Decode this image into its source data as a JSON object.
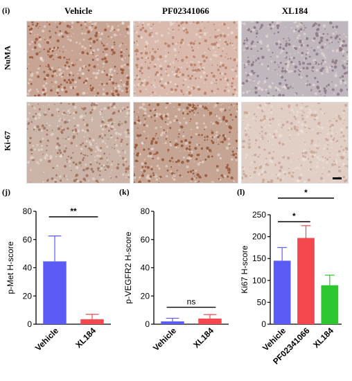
{
  "panel_labels": {
    "i": "(i)",
    "j": "(j)",
    "k": "(k)",
    "l": "(l)"
  },
  "micrographs": {
    "columns": [
      "Vehicle",
      "PF02341066",
      "XL184"
    ],
    "rows": [
      "NuMA",
      "Ki-67"
    ],
    "tile_colors": [
      [
        "#9a5a3c",
        "#b9826a",
        "#8d7a86"
      ],
      [
        "#a0745f",
        "#96593a",
        "#c9a797"
      ]
    ],
    "scale_bar_color": "#000000"
  },
  "chart_data": [
    {
      "type": "bar",
      "panel": "(j)",
      "categories": [
        "Vehicle",
        "XL184"
      ],
      "values": [
        44.5,
        3.5
      ],
      "errors": [
        18,
        3.5
      ],
      "colors": [
        "#5b5bf5",
        "#f5474e"
      ],
      "ylabel": "p-Met H-score",
      "ylim": [
        0,
        80
      ],
      "yticks": [
        "0",
        "20",
        "40",
        "60",
        "80"
      ],
      "significance": [
        {
          "from": 0,
          "to": 1,
          "label": "**"
        }
      ]
    },
    {
      "type": "bar",
      "panel": "(k)",
      "categories": [
        "Vehicle",
        "XL184"
      ],
      "values": [
        2,
        4
      ],
      "errors": [
        2.2,
        2.8
      ],
      "colors": [
        "#5b5bf5",
        "#f5474e"
      ],
      "ylabel": "p-VEGFR2 H-score",
      "ylim": [
        0,
        80
      ],
      "yticks": [
        "0",
        "20",
        "40",
        "60",
        "80"
      ],
      "significance": [
        {
          "from": 0,
          "to": 1,
          "label": "ns"
        }
      ]
    },
    {
      "type": "bar",
      "panel": "(l)",
      "categories": [
        "Vehicle",
        "PF02341066",
        "XL184"
      ],
      "values": [
        145,
        197,
        89
      ],
      "errors": [
        30,
        28,
        23
      ],
      "colors": [
        "#5b5bf5",
        "#f5474e",
        "#2ec62e"
      ],
      "ylabel": "Ki67 H-score",
      "ylim": [
        0,
        250
      ],
      "yticks": [
        "0",
        "50",
        "100",
        "150",
        "200",
        "250"
      ],
      "significance": [
        {
          "from": 0,
          "to": 1,
          "label": "*"
        },
        {
          "from": 0,
          "to": 2,
          "label": "*"
        }
      ]
    }
  ]
}
